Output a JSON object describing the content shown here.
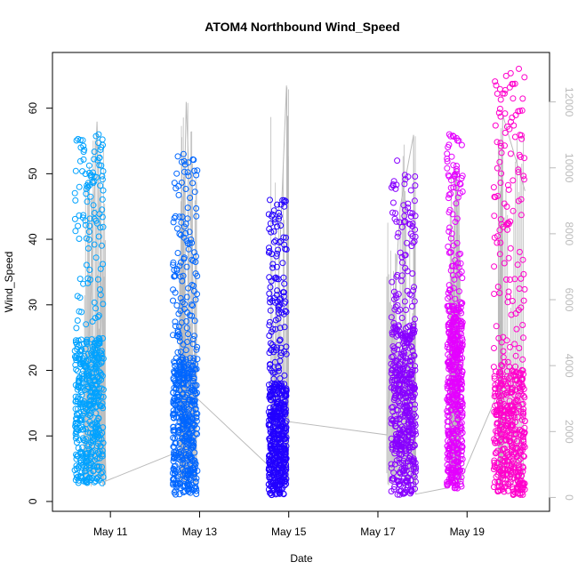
{
  "chart_data": {
    "type": "scatter",
    "title": "ATOM4 Northbound Wind_Speed",
    "xlabel": "Date",
    "ylabel": "Wind_Speed",
    "x_axis": {
      "unit": "day",
      "ticks": [
        {
          "label": "May 11",
          "day": 11
        },
        {
          "label": "May 13",
          "day": 13
        },
        {
          "label": "May 15",
          "day": 15
        },
        {
          "label": "May 17",
          "day": 17
        },
        {
          "label": "May 19",
          "day": 19
        }
      ],
      "xlim": [
        9.7,
        20.85
      ]
    },
    "y_axis": {
      "ticks": [
        0,
        10,
        20,
        30,
        40,
        50,
        60
      ],
      "ylim": [
        -1.5,
        68.5
      ]
    },
    "y2_axis": {
      "ticks": [
        0,
        2000,
        4000,
        6000,
        8000,
        10000,
        12000
      ],
      "ylim": [
        -420,
        13500
      ],
      "color": "#bbbbbb"
    },
    "grid": false,
    "legend": "none",
    "series": [
      {
        "color": "#00a2ff",
        "x_range": [
          10.2,
          10.85
        ],
        "min": 2.8,
        "max": 56,
        "core_max": 25
      },
      {
        "color": "#0066ff",
        "x_range": [
          12.4,
          12.95
        ],
        "min": 1,
        "max": 53,
        "core_max": 22
      },
      {
        "color": "#2200ff",
        "x_range": [
          14.55,
          14.95
        ],
        "min": 1,
        "max": 46,
        "core_max": 18
      },
      {
        "color": "#8800ff",
        "x_range": [
          17.3,
          17.85
        ],
        "min": 1,
        "max": 52,
        "core_max": 27
      },
      {
        "color": "#e400ff",
        "x_range": [
          18.55,
          18.9
        ],
        "min": 2,
        "max": 56,
        "core_max": 30
      },
      {
        "color": "#ff00cc",
        "x_range": [
          19.6,
          20.3
        ],
        "min": 1,
        "max": 66,
        "core_max": 20
      }
    ],
    "secondary_line": {
      "color": "#bbbbbb",
      "points": [
        {
          "day": 10.4,
          "value": 500
        },
        {
          "day": 10.7,
          "value": 11400
        },
        {
          "day": 10.9,
          "value": 500
        },
        {
          "day": 12.55,
          "value": 1400
        },
        {
          "day": 12.7,
          "value": 12000
        },
        {
          "day": 12.95,
          "value": 3000
        },
        {
          "day": 14.6,
          "value": 900
        },
        {
          "day": 14.95,
          "value": 12500
        },
        {
          "day": 15.0,
          "value": 2300
        },
        {
          "day": 17.2,
          "value": 1900
        },
        {
          "day": 17.5,
          "value": 8800
        },
        {
          "day": 17.8,
          "value": 11000
        },
        {
          "day": 17.85,
          "value": 100
        },
        {
          "day": 18.6,
          "value": 300
        },
        {
          "day": 18.75,
          "value": 10000
        },
        {
          "day": 18.85,
          "value": 500
        },
        {
          "day": 19.7,
          "value": 3200
        },
        {
          "day": 19.8,
          "value": 11600
        },
        {
          "day": 20.3,
          "value": 9300
        }
      ]
    }
  }
}
